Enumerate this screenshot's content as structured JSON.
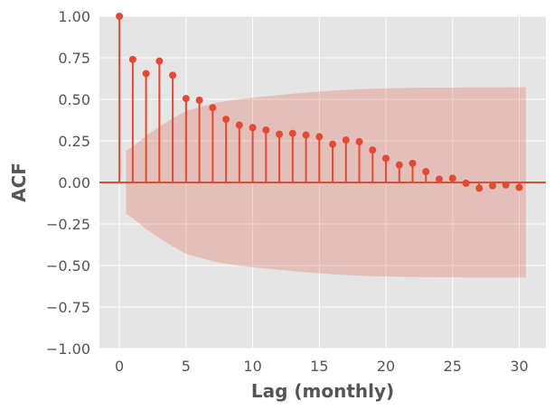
{
  "chart_data": {
    "type": "scatter",
    "plot_kind": "stem-acf",
    "title": "",
    "xlabel": "Lag (monthly)",
    "ylabel": "ACF",
    "xlim": [
      -1.5,
      32
    ],
    "ylim": [
      -1.0,
      1.0
    ],
    "x_ticks": [
      0,
      5,
      10,
      15,
      20,
      25,
      30
    ],
    "x_tick_labels": [
      "0",
      "5",
      "10",
      "15",
      "20",
      "25",
      "30"
    ],
    "y_ticks": [
      1.0,
      0.75,
      0.5,
      0.25,
      0.0,
      -0.25,
      -0.5,
      -0.75,
      -1.0
    ],
    "y_tick_labels": [
      "1.00",
      "0.75",
      "0.50",
      "0.25",
      "0.00",
      "−0.25",
      "−0.50",
      "−0.75",
      "−1.00"
    ],
    "grid": true,
    "series": [
      {
        "lags": [
          0,
          1,
          2,
          3,
          4,
          5,
          6,
          7,
          8,
          9,
          10,
          11,
          12,
          13,
          14,
          15,
          16,
          17,
          18,
          19,
          20,
          21,
          22,
          23,
          24,
          25,
          26,
          27,
          28,
          29,
          30
        ],
        "values": [
          1.0,
          0.74,
          0.655,
          0.73,
          0.645,
          0.505,
          0.495,
          0.45,
          0.38,
          0.345,
          0.33,
          0.315,
          0.29,
          0.295,
          0.285,
          0.275,
          0.23,
          0.255,
          0.245,
          0.195,
          0.145,
          0.105,
          0.115,
          0.065,
          0.02,
          0.025,
          -0.005,
          -0.035,
          -0.02,
          -0.015,
          -0.03
        ]
      }
    ],
    "confidence_band": {
      "lags": [
        0.5,
        1,
        2,
        3,
        4,
        5,
        6,
        7,
        8,
        9,
        10,
        11,
        12,
        13,
        14,
        15,
        16,
        17,
        18,
        19,
        20,
        21,
        22,
        23,
        24,
        25,
        26,
        27,
        28,
        29,
        30,
        30.5
      ],
      "upper": [
        0.19,
        0.215,
        0.28,
        0.335,
        0.385,
        0.43,
        0.452,
        0.475,
        0.49,
        0.501,
        0.51,
        0.518,
        0.526,
        0.534,
        0.541,
        0.547,
        0.552,
        0.557,
        0.561,
        0.564,
        0.566,
        0.568,
        0.569,
        0.57,
        0.571,
        0.571,
        0.572,
        0.572,
        0.572,
        0.572,
        0.573,
        0.573
      ]
    },
    "colors": {
      "stem": "#e24a33",
      "band": "#e24a33",
      "band_opacity": 0.25,
      "background": "#e5e5e5",
      "grid": "#ffffff",
      "zero_line": "#e24a33"
    }
  }
}
